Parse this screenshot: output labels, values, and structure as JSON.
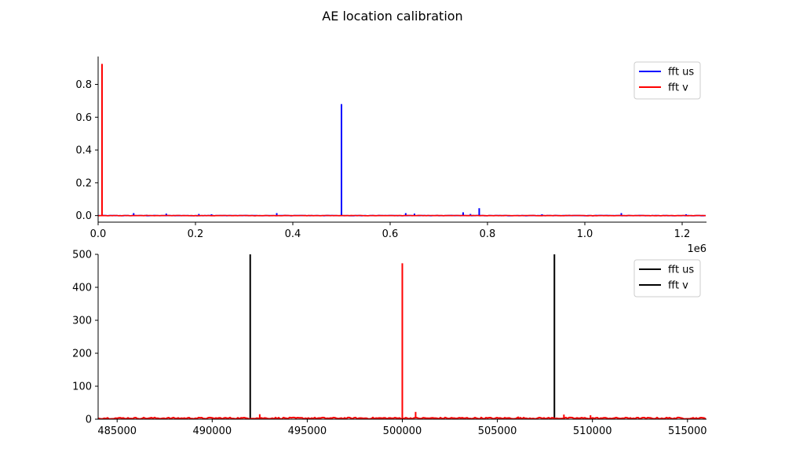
{
  "figure": {
    "title": "AE location calibration"
  },
  "chart_data": [
    {
      "type": "line",
      "title": "",
      "xlabel": "",
      "ylabel": "",
      "xlim": [
        0,
        1250000
      ],
      "ylim": [
        -0.04,
        0.97
      ],
      "x_ticks": [
        0,
        200000,
        400000,
        600000,
        800000,
        1000000,
        1200000
      ],
      "x_tick_labels": [
        "0.0",
        "0.2",
        "0.4",
        "0.6",
        "0.8",
        "1.0",
        "1.2"
      ],
      "x_offset_label": "1e6",
      "y_ticks": [
        0.0,
        0.2,
        0.4,
        0.6,
        0.8
      ],
      "y_tick_labels": [
        "0.0",
        "0.2",
        "0.4",
        "0.6",
        "0.8"
      ],
      "grid": false,
      "legend": "top-right",
      "series": [
        {
          "name": "fft us",
          "color": "#0000ff",
          "baseline": 0.0,
          "spikes": [
            [
              73000,
              0.015
            ],
            [
              100000,
              0.005
            ],
            [
              140000,
              0.012
            ],
            [
              207000,
              0.01
            ],
            [
              233000,
              0.008
            ],
            [
              367000,
              0.015
            ],
            [
              500000,
              0.68
            ],
            [
              632000,
              0.015
            ],
            [
              650000,
              0.012
            ],
            [
              750000,
              0.02
            ],
            [
              765000,
              0.01
            ],
            [
              783000,
              0.045
            ],
            [
              912000,
              0.008
            ],
            [
              1075000,
              0.015
            ],
            [
              1208000,
              0.008
            ]
          ]
        },
        {
          "name": "fft v",
          "color": "#ff0000",
          "baseline": 0.0,
          "spikes": [
            [
              8000,
              0.925
            ],
            [
              520000,
              0.004
            ]
          ]
        }
      ]
    },
    {
      "type": "line",
      "title": "",
      "xlabel": "",
      "ylabel": "",
      "xlim": [
        484000,
        516000
      ],
      "ylim": [
        0,
        500
      ],
      "x_ticks": [
        485000,
        490000,
        495000,
        500000,
        505000,
        510000,
        515000
      ],
      "x_tick_labels": [
        "485000",
        "490000",
        "495000",
        "500000",
        "505000",
        "510000",
        "515000"
      ],
      "y_ticks": [
        0,
        100,
        200,
        300,
        400,
        500
      ],
      "y_tick_labels": [
        "0",
        "100",
        "200",
        "300",
        "400",
        "500"
      ],
      "grid": false,
      "legend": "top-right",
      "vertical_lines": [
        {
          "x": 492000,
          "color": "#000000"
        },
        {
          "x": 508000,
          "color": "#000000"
        }
      ],
      "series": [
        {
          "name": "fft us",
          "color": "#000000",
          "legend_only": true
        },
        {
          "name": "fft v",
          "color": "#000000",
          "legend_only": true
        },
        {
          "name": "",
          "color": "#ff0000",
          "baseline": 3,
          "spikes": [
            [
              492500,
              15
            ],
            [
              500000,
              473
            ],
            [
              500700,
              22
            ],
            [
              506100,
              8
            ],
            [
              508500,
              14
            ],
            [
              509900,
              12
            ],
            [
              512000,
              6
            ]
          ]
        }
      ]
    }
  ]
}
